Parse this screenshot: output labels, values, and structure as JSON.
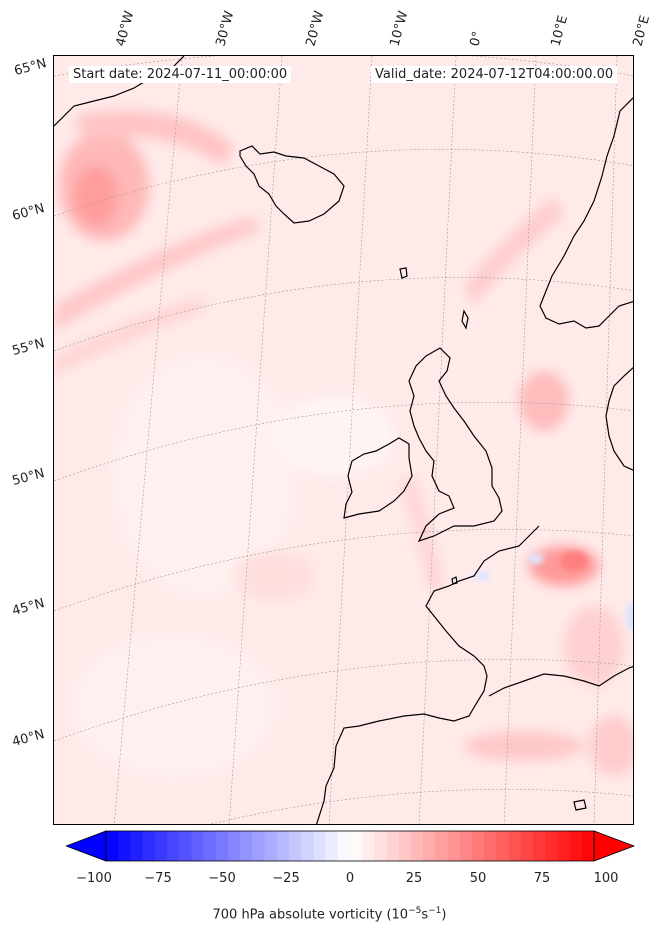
{
  "map": {
    "header_start": "Start date: 2024-07-11_00:00:00",
    "header_valid": "Valid_date: 2024-07-12T04:00:00.00",
    "lon_labels": [
      "40°W",
      "30°W",
      "20°W",
      "10°W",
      "0°",
      "10°E",
      "20°E"
    ],
    "lat_labels": [
      "65°N",
      "60°N",
      "55°N",
      "50°N",
      "45°N",
      "40°N"
    ],
    "field_base_color": "#ffeaea",
    "coast_color": "#000000"
  },
  "colorbar": {
    "ticks": [
      "−100",
      "−75",
      "−50",
      "−25",
      "0",
      "25",
      "50",
      "75",
      "100"
    ],
    "label": "700 hPa absolute vorticity (10",
    "label_exp1": "−5",
    "label_mid": "s",
    "label_exp2": "−1",
    "label_end": ")",
    "vmin": -100,
    "vmax": 100,
    "low_color": "#0000ff",
    "mid_color": "#ffffff",
    "high_color": "#ff0000"
  }
}
